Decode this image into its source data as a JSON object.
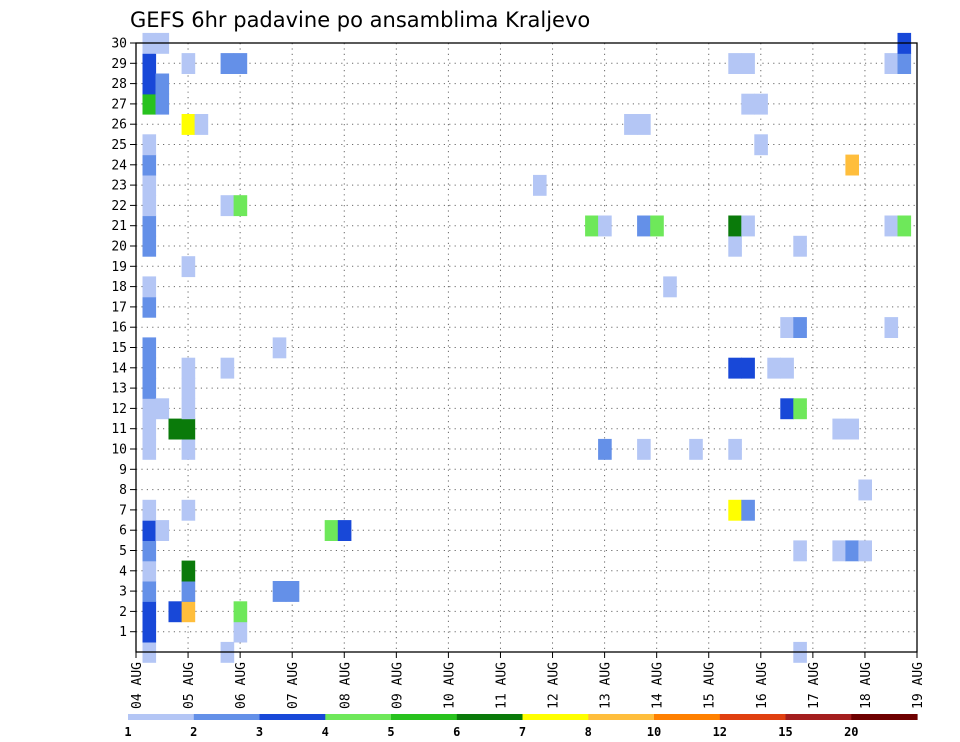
{
  "chart_data": {
    "type": "heatmap",
    "title": "GEFS 6hr padavine po ansamblima Kraljevo",
    "xlabel": "",
    "ylabel": "",
    "x_tick_labels": [
      "04 AUG",
      "05 AUG",
      "06 AUG",
      "07 AUG",
      "08 AUG",
      "09 AUG",
      "10 AUG",
      "11 AUG",
      "12 AUG",
      "13 AUG",
      "14 AUG",
      "15 AUG",
      "16 AUG",
      "17 AUG",
      "18 AUG",
      "19 AUG"
    ],
    "y_tick_labels": [
      "1",
      "2",
      "3",
      "4",
      "5",
      "6",
      "7",
      "8",
      "9",
      "10",
      "11",
      "12",
      "13",
      "14",
      "15",
      "16",
      "17",
      "18",
      "19",
      "20",
      "21",
      "22",
      "23",
      "24",
      "25",
      "26",
      "27",
      "28",
      "29",
      "30"
    ],
    "x_range_days": [
      0,
      15
    ],
    "time_step_hours": 6,
    "y_range": [
      0,
      30
    ],
    "grid": true,
    "legend": {
      "placement": "bottom",
      "levels": [
        1,
        2,
        3,
        4,
        5,
        6,
        7,
        8,
        10,
        12,
        15,
        20
      ],
      "level_labels": [
        "1",
        "2",
        "3",
        "4",
        "5",
        "6",
        "7",
        "8",
        "10",
        "12",
        "15",
        "20"
      ],
      "colors": [
        "#b4c6f5",
        "#6490e8",
        "#1848d8",
        "#6ee85a",
        "#28c21e",
        "#0a7a0a",
        "#ffff00",
        "#ffbe3c",
        "#ff8000",
        "#e04010",
        "#a41e1e",
        "#6e0000"
      ]
    },
    "cells": [
      {
        "t": 0.25,
        "m": 0,
        "c": 1
      },
      {
        "t": 0.25,
        "m": 1,
        "c": 3
      },
      {
        "t": 0.25,
        "m": 2,
        "c": 3
      },
      {
        "t": 0.25,
        "m": 3,
        "c": 2
      },
      {
        "t": 0.25,
        "m": 4,
        "c": 1
      },
      {
        "t": 0.25,
        "m": 5,
        "c": 2
      },
      {
        "t": 0.25,
        "m": 6,
        "c": 3
      },
      {
        "t": 0.25,
        "m": 7,
        "c": 1
      },
      {
        "t": 0.25,
        "m": 10,
        "c": 1
      },
      {
        "t": 0.25,
        "m": 11,
        "c": 1
      },
      {
        "t": 0.25,
        "m": 12,
        "c": 1
      },
      {
        "t": 0.25,
        "m": 13,
        "c": 2
      },
      {
        "t": 0.25,
        "m": 14,
        "c": 2
      },
      {
        "t": 0.25,
        "m": 15,
        "c": 2
      },
      {
        "t": 0.25,
        "m": 17,
        "c": 2
      },
      {
        "t": 0.25,
        "m": 18,
        "c": 1
      },
      {
        "t": 0.25,
        "m": 20,
        "c": 2
      },
      {
        "t": 0.25,
        "m": 21,
        "c": 2
      },
      {
        "t": 0.25,
        "m": 22,
        "c": 1
      },
      {
        "t": 0.25,
        "m": 23,
        "c": 1
      },
      {
        "t": 0.25,
        "m": 24,
        "c": 2
      },
      {
        "t": 0.25,
        "m": 25,
        "c": 1
      },
      {
        "t": 0.25,
        "m": 27,
        "c": 5
      },
      {
        "t": 0.25,
        "m": 28,
        "c": 3
      },
      {
        "t": 0.25,
        "m": 29,
        "c": 3
      },
      {
        "t": 0.25,
        "m": 30,
        "c": 1
      },
      {
        "t": 0.5,
        "m": 12,
        "c": 1
      },
      {
        "t": 0.5,
        "m": 30,
        "c": 1
      },
      {
        "t": 0.5,
        "m": 27,
        "c": 2
      },
      {
        "t": 0.5,
        "m": 28,
        "c": 2
      },
      {
        "t": 0.5,
        "m": 6,
        "c": 1
      },
      {
        "t": 0.75,
        "m": 2,
        "c": 3
      },
      {
        "t": 0.75,
        "m": 11,
        "c": 6
      },
      {
        "t": 1.0,
        "m": 2,
        "c": 8
      },
      {
        "t": 1.0,
        "m": 3,
        "c": 2
      },
      {
        "t": 1.0,
        "m": 4,
        "c": 6
      },
      {
        "t": 1.0,
        "m": 7,
        "c": 1
      },
      {
        "t": 1.0,
        "m": 10,
        "c": 1
      },
      {
        "t": 1.0,
        "m": 11,
        "c": 6
      },
      {
        "t": 1.0,
        "m": 12,
        "c": 1
      },
      {
        "t": 1.0,
        "m": 13,
        "c": 1
      },
      {
        "t": 1.0,
        "m": 14,
        "c": 1
      },
      {
        "t": 1.0,
        "m": 19,
        "c": 1
      },
      {
        "t": 1.0,
        "m": 26,
        "c": 7
      },
      {
        "t": 1.0,
        "m": 29,
        "c": 1
      },
      {
        "t": 1.25,
        "m": 26,
        "c": 1
      },
      {
        "t": 1.75,
        "m": 0,
        "c": 1
      },
      {
        "t": 1.75,
        "m": 14,
        "c": 1
      },
      {
        "t": 1.75,
        "m": 22,
        "c": 1
      },
      {
        "t": 1.75,
        "m": 29,
        "c": 2
      },
      {
        "t": 2.0,
        "m": 1,
        "c": 1
      },
      {
        "t": 2.0,
        "m": 2,
        "c": 4
      },
      {
        "t": 2.0,
        "m": 22,
        "c": 4
      },
      {
        "t": 2.0,
        "m": 29,
        "c": 2
      },
      {
        "t": 2.75,
        "m": 3,
        "c": 2
      },
      {
        "t": 2.75,
        "m": 15,
        "c": 1
      },
      {
        "t": 3.0,
        "m": 3,
        "c": 2
      },
      {
        "t": 3.75,
        "m": 6,
        "c": 4
      },
      {
        "t": 4.0,
        "m": 6,
        "c": 3
      },
      {
        "t": 7.75,
        "m": 23,
        "c": 1
      },
      {
        "t": 8.75,
        "m": 21,
        "c": 4
      },
      {
        "t": 9.0,
        "m": 10,
        "c": 2
      },
      {
        "t": 9.0,
        "m": 21,
        "c": 1
      },
      {
        "t": 9.5,
        "m": 26,
        "c": 1
      },
      {
        "t": 9.75,
        "m": 26,
        "c": 1
      },
      {
        "t": 9.75,
        "m": 10,
        "c": 1
      },
      {
        "t": 9.75,
        "m": 21,
        "c": 2
      },
      {
        "t": 10.0,
        "m": 21,
        "c": 4
      },
      {
        "t": 10.25,
        "m": 18,
        "c": 1
      },
      {
        "t": 10.75,
        "m": 10,
        "c": 1
      },
      {
        "t": 11.5,
        "m": 7,
        "c": 7
      },
      {
        "t": 11.5,
        "m": 10,
        "c": 1
      },
      {
        "t": 11.5,
        "m": 14,
        "c": 3
      },
      {
        "t": 11.5,
        "m": 20,
        "c": 1
      },
      {
        "t": 11.5,
        "m": 21,
        "c": 6
      },
      {
        "t": 11.75,
        "m": 7,
        "c": 2
      },
      {
        "t": 11.75,
        "m": 14,
        "c": 3
      },
      {
        "t": 11.75,
        "m": 21,
        "c": 1
      },
      {
        "t": 11.75,
        "m": 29,
        "c": 1
      },
      {
        "t": 11.75,
        "m": 27,
        "c": 1
      },
      {
        "t": 11.5,
        "m": 29,
        "c": 1
      },
      {
        "t": 12.0,
        "m": 27,
        "c": 1
      },
      {
        "t": 12.0,
        "m": 25,
        "c": 1
      },
      {
        "t": 12.25,
        "m": 14,
        "c": 1
      },
      {
        "t": 12.5,
        "m": 14,
        "c": 1
      },
      {
        "t": 12.5,
        "m": 12,
        "c": 3
      },
      {
        "t": 12.5,
        "m": 16,
        "c": 1
      },
      {
        "t": 12.75,
        "m": 0,
        "c": 1
      },
      {
        "t": 12.75,
        "m": 5,
        "c": 1
      },
      {
        "t": 12.75,
        "m": 12,
        "c": 4
      },
      {
        "t": 12.75,
        "m": 16,
        "c": 2
      },
      {
        "t": 12.75,
        "m": 20,
        "c": 1
      },
      {
        "t": 13.5,
        "m": 11,
        "c": 1
      },
      {
        "t": 13.5,
        "m": 5,
        "c": 1
      },
      {
        "t": 13.75,
        "m": 11,
        "c": 1
      },
      {
        "t": 13.75,
        "m": 5,
        "c": 2
      },
      {
        "t": 14.0,
        "m": 5,
        "c": 1
      },
      {
        "t": 13.75,
        "m": 24,
        "c": 8
      },
      {
        "t": 14.0,
        "m": 8,
        "c": 1
      },
      {
        "t": 14.5,
        "m": 16,
        "c": 1
      },
      {
        "t": 14.5,
        "m": 21,
        "c": 1
      },
      {
        "t": 14.75,
        "m": 21,
        "c": 4
      },
      {
        "t": 14.5,
        "m": 29,
        "c": 1
      },
      {
        "t": 14.75,
        "m": 29,
        "c": 2
      },
      {
        "t": 14.75,
        "m": 30,
        "c": 3
      }
    ]
  }
}
